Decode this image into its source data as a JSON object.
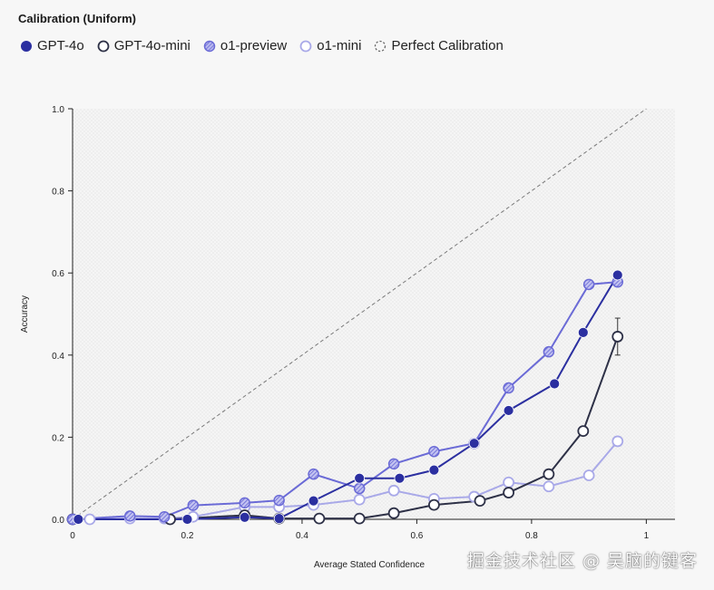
{
  "chart_data": {
    "type": "line",
    "title": "Calibration (Uniform)",
    "xlabel": "Average Stated Confidence",
    "ylabel": "Accuracy",
    "xlim": [
      0,
      1.05
    ],
    "ylim": [
      0,
      1.0
    ],
    "x_ticks": [
      "0",
      "0.2",
      "0.4",
      "0.6",
      "0.8",
      "1"
    ],
    "y_ticks": [
      "0.0",
      "0.2",
      "0.4",
      "0.6",
      "0.8",
      "1.0"
    ],
    "legend_placement": "top-left",
    "series": [
      {
        "name": "GPT-4o",
        "color": "#2b2fa0",
        "marker": "filled",
        "x": [
          0.01,
          0.2,
          0.3,
          0.36,
          0.42,
          0.5,
          0.57,
          0.63,
          0.7,
          0.76,
          0.84,
          0.89,
          0.95
        ],
        "y": [
          0.0,
          0.0,
          0.005,
          0.002,
          0.045,
          0.1,
          0.1,
          0.12,
          0.185,
          0.265,
          0.33,
          0.455,
          0.595
        ]
      },
      {
        "name": "GPT-4o-mini",
        "color": "#2e3147",
        "marker": "hollow",
        "x": [
          0.0,
          0.17,
          0.3,
          0.36,
          0.43,
          0.5,
          0.56,
          0.63,
          0.71,
          0.76,
          0.83,
          0.89,
          0.95
        ],
        "y": [
          0.0,
          0.0,
          0.01,
          0.002,
          0.002,
          0.002,
          0.015,
          0.035,
          0.045,
          0.065,
          0.11,
          0.215,
          0.445
        ]
      },
      {
        "name": "o1-preview",
        "color": "#6b6bd6",
        "marker": "hatched",
        "x": [
          0.0,
          0.1,
          0.16,
          0.21,
          0.3,
          0.36,
          0.42,
          0.5,
          0.56,
          0.63,
          0.7,
          0.76,
          0.83,
          0.9,
          0.95
        ],
        "y": [
          0.0,
          0.008,
          0.006,
          0.034,
          0.04,
          0.046,
          0.11,
          0.075,
          0.135,
          0.165,
          0.185,
          0.32,
          0.408,
          0.572,
          0.578
        ]
      },
      {
        "name": "o1-mini",
        "color": "#a9a9e8",
        "marker": "hollow",
        "x": [
          0.0,
          0.03,
          0.1,
          0.16,
          0.21,
          0.3,
          0.36,
          0.42,
          0.5,
          0.56,
          0.63,
          0.7,
          0.76,
          0.83,
          0.9,
          0.95
        ],
        "y": [
          0.0,
          0.0,
          0.002,
          0.002,
          0.006,
          0.03,
          0.03,
          0.035,
          0.048,
          0.07,
          0.05,
          0.055,
          0.09,
          0.08,
          0.107,
          0.19
        ]
      },
      {
        "name": "Perfect Calibration",
        "color": "#777777",
        "marker": "dashed",
        "x": [
          0,
          1
        ],
        "y": [
          0,
          1
        ]
      }
    ],
    "error_bars": [
      {
        "series": "GPT-4o",
        "x": 0.95,
        "low": 0.59,
        "high": 0.605
      },
      {
        "series": "GPT-4o",
        "x": 0.5,
        "low": 0.09,
        "high": 0.11
      },
      {
        "series": "GPT-4o",
        "x": 0.57,
        "low": 0.09,
        "high": 0.11
      },
      {
        "series": "GPT-4o-mini",
        "x": 0.95,
        "low": 0.4,
        "high": 0.49
      },
      {
        "series": "o1-preview",
        "x": 0.42,
        "low": 0.1,
        "high": 0.12
      },
      {
        "series": "o1-preview",
        "x": 0.56,
        "low": 0.125,
        "high": 0.145
      }
    ]
  },
  "watermark": "掘金技术社区 @ 吴脑的键客"
}
